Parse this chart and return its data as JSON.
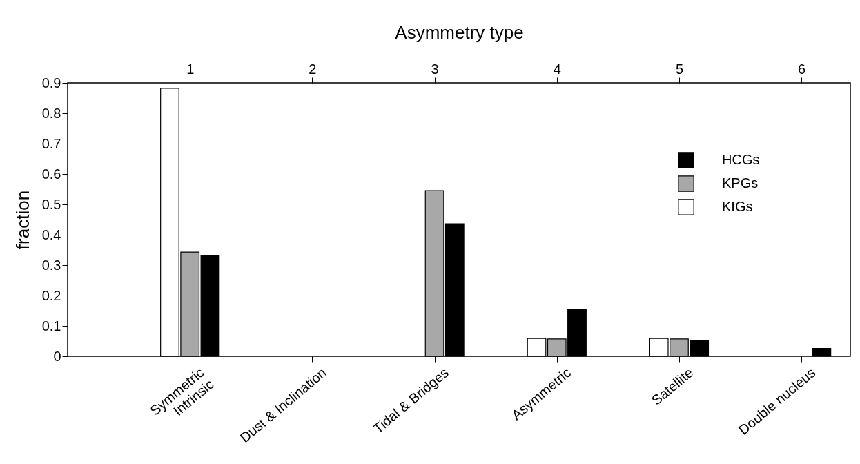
{
  "chart_data": {
    "type": "bar",
    "x2label": "Asymmetry type",
    "ylabel": "fraction",
    "categories": [
      "Symmetric\nIntrinsic",
      "Dust & Inclination",
      "Tidal & Bridges",
      "Asymmetric",
      "Satellite",
      "Double nucleus"
    ],
    "x2lim": [
      0,
      6.4
    ],
    "x2ticks": [
      1,
      2,
      3,
      4,
      5,
      6
    ],
    "ylim": [
      0,
      0.9
    ],
    "yticks": [
      0,
      0.1,
      0.2,
      0.3,
      0.4,
      0.5,
      0.6,
      0.7,
      0.8,
      0.9
    ],
    "series": [
      {
        "name": "KIGs",
        "color": "#ffffff",
        "values": [
          0.882,
          null,
          null,
          0.059,
          0.059,
          null
        ]
      },
      {
        "name": "KPGs",
        "color": "#a8a8a8",
        "values": [
          0.343,
          null,
          0.545,
          0.057,
          0.057,
          null
        ]
      },
      {
        "name": "HCGs",
        "color": "#000000",
        "values": [
          0.333,
          null,
          0.436,
          0.155,
          0.053,
          0.026
        ]
      }
    ],
    "legend": "right",
    "grid": false
  }
}
